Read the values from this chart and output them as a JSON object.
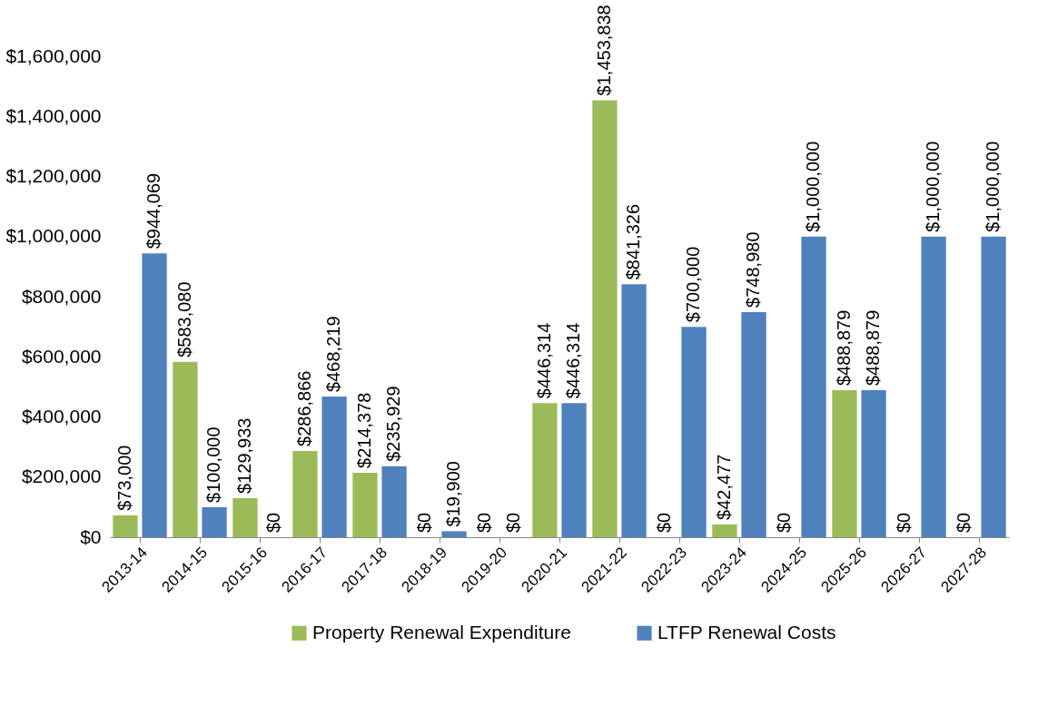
{
  "chart_data": {
    "type": "bar",
    "categories": [
      "2013-14",
      "2014-15",
      "2015-16",
      "2016-17",
      "2017-18",
      "2018-19",
      "2019-20",
      "2020-21",
      "2021-22",
      "2022-23",
      "2023-24",
      "2024-25",
      "2025-26",
      "2026-27",
      "2027-28"
    ],
    "series": [
      {
        "name": "Property Renewal Expenditure",
        "color": "#9bbb59",
        "values": [
          73000,
          583080,
          129933,
          286866,
          214378,
          0,
          0,
          446314,
          1453838,
          0,
          42477,
          0,
          488879,
          0,
          0
        ],
        "value_labels": [
          "$73,000",
          "$583,080",
          "$129,933",
          "$286,866",
          "$214,378",
          "$0",
          "$0",
          "$446,314",
          "$1,453,838",
          "$0",
          "$42,477",
          "$0",
          "$488,879",
          "$0",
          "$0"
        ]
      },
      {
        "name": "LTFP Renewal Costs",
        "color": "#4f81bd",
        "values": [
          944069,
          100000,
          0,
          468219,
          235929,
          19900,
          0,
          446314,
          841326,
          700000,
          748980,
          1000000,
          488879,
          1000000,
          1000000
        ],
        "value_labels": [
          "$944,069",
          "$100,000",
          "$0",
          "$468,219",
          "$235,929",
          "$19,900",
          "$0",
          "$446,314",
          "$841,326",
          "$700,000",
          "$748,980",
          "$1,000,000",
          "$488,879",
          "$1,000,000",
          "$1,000,000"
        ]
      }
    ],
    "ylim": [
      0,
      1600000
    ],
    "yticks": [
      {
        "value": 0,
        "label": "$0"
      },
      {
        "value": 200000,
        "label": "$200,000"
      },
      {
        "value": 400000,
        "label": "$400,000"
      },
      {
        "value": 600000,
        "label": "$600,000"
      },
      {
        "value": 800000,
        "label": "$800,000"
      },
      {
        "value": 1000000,
        "label": "$1,000,000"
      },
      {
        "value": 1200000,
        "label": "$1,200,000"
      },
      {
        "value": 1400000,
        "label": "$1,400,000"
      },
      {
        "value": 1600000,
        "label": "$1,600,000"
      }
    ],
    "legend": "bottom"
  }
}
